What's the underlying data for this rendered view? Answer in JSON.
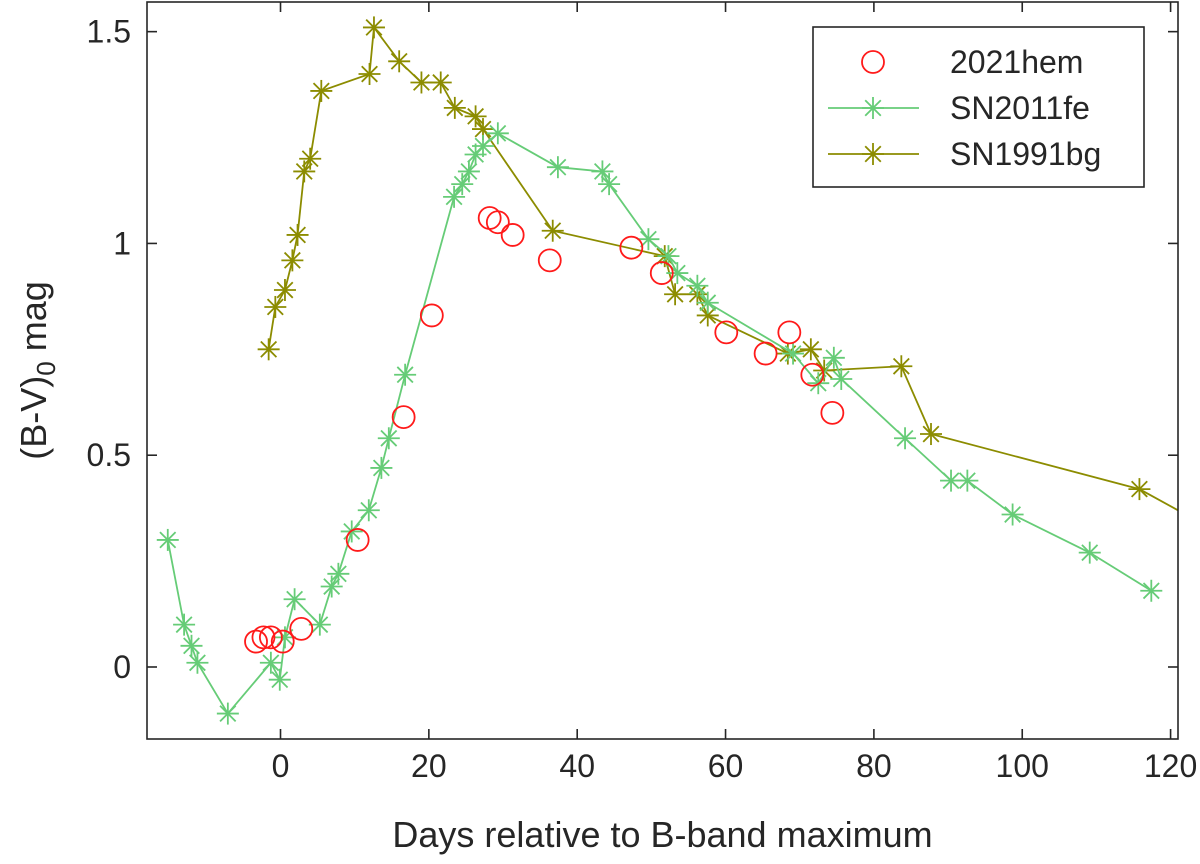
{
  "chart_data": {
    "type": "scatter",
    "title": "",
    "xlabel": "Days relative to B-band maximum",
    "ylabel": {
      "prefix": "(B-V)",
      "subscript": "0",
      "suffix": " mag"
    },
    "xlim": [
      -18,
      121
    ],
    "ylim": [
      -0.17,
      1.57
    ],
    "xticks": [
      0,
      20,
      40,
      60,
      80,
      100,
      120
    ],
    "xtick_labels": [
      "0",
      "20",
      "40",
      "60",
      "80",
      "100",
      "120"
    ],
    "yticks": [
      0,
      0.5,
      1,
      1.5
    ],
    "ytick_labels": [
      "0",
      "0.5",
      "1",
      "1.5"
    ],
    "grid": false,
    "legend_position": "top-right",
    "series": [
      {
        "name": "SN1991bg",
        "color": "#8c8c00",
        "marker": "asterisk",
        "line": true,
        "x": [
          -1.6,
          -0.7,
          0.6,
          1.6,
          2.3,
          3.2,
          4.0,
          5.5,
          12.0,
          12.6,
          16.0,
          19.0,
          21.6,
          23.5,
          26.3,
          27.3,
          36.7,
          51.8,
          53.2,
          56.2,
          57.6,
          68.4,
          71.5,
          73.3,
          83.7,
          87.7,
          115.8,
          121.0
        ],
        "y": [
          0.75,
          0.85,
          0.89,
          0.96,
          1.02,
          1.17,
          1.2,
          1.36,
          1.4,
          1.51,
          1.43,
          1.38,
          1.38,
          1.32,
          1.3,
          1.27,
          1.03,
          0.97,
          0.88,
          0.88,
          0.83,
          0.74,
          0.75,
          0.7,
          0.71,
          0.55,
          0.42,
          0.37
        ],
        "marker_mask": [
          true,
          true,
          true,
          true,
          true,
          true,
          true,
          true,
          true,
          true,
          true,
          true,
          true,
          true,
          true,
          true,
          true,
          true,
          true,
          true,
          true,
          true,
          true,
          true,
          true,
          true,
          true,
          false
        ]
      },
      {
        "name": "SN2011fe",
        "color": "#66cc77",
        "marker": "asterisk",
        "line": true,
        "x": [
          -15.2,
          -13.0,
          -12.0,
          -11.2,
          -7.1,
          -1.3,
          -0.1,
          0.6,
          1.9,
          5.3,
          6.9,
          7.8,
          9.6,
          11.9,
          13.6,
          14.6,
          16.8,
          23.4,
          24.5,
          25.4,
          26.3,
          27.3,
          29.3,
          37.4,
          43.4,
          44.3,
          49.6,
          52.3,
          53.5,
          56.2,
          57.6,
          69.1,
          72.5,
          74.6,
          75.6,
          84.2,
          90.4,
          92.6,
          98.7,
          109.1,
          117.4
        ],
        "y": [
          0.3,
          0.1,
          0.05,
          0.01,
          -0.11,
          0.01,
          -0.03,
          0.07,
          0.16,
          0.1,
          0.19,
          0.22,
          0.32,
          0.37,
          0.47,
          0.54,
          0.69,
          1.11,
          1.14,
          1.17,
          1.21,
          1.23,
          1.26,
          1.18,
          1.17,
          1.14,
          1.01,
          0.97,
          0.93,
          0.9,
          0.86,
          0.74,
          0.67,
          0.73,
          0.68,
          0.54,
          0.44,
          0.44,
          0.36,
          0.27,
          0.18
        ]
      },
      {
        "name": "2021hem",
        "color": "#ff1a1a",
        "marker": "circle",
        "line": false,
        "x": [
          -3.3,
          -2.3,
          -1.3,
          0.3,
          2.8,
          10.4,
          16.6,
          20.4,
          28.2,
          29.3,
          31.3,
          36.3,
          47.3,
          51.4,
          60.1,
          65.4,
          68.6,
          71.7,
          74.4
        ],
        "y": [
          0.06,
          0.07,
          0.07,
          0.06,
          0.09,
          0.3,
          0.59,
          0.83,
          1.06,
          1.05,
          1.02,
          0.96,
          0.99,
          0.93,
          0.79,
          0.74,
          0.79,
          0.69,
          0.6
        ]
      }
    ],
    "legend_order": [
      "2021hem",
      "SN2011fe",
      "SN1991bg"
    ]
  }
}
